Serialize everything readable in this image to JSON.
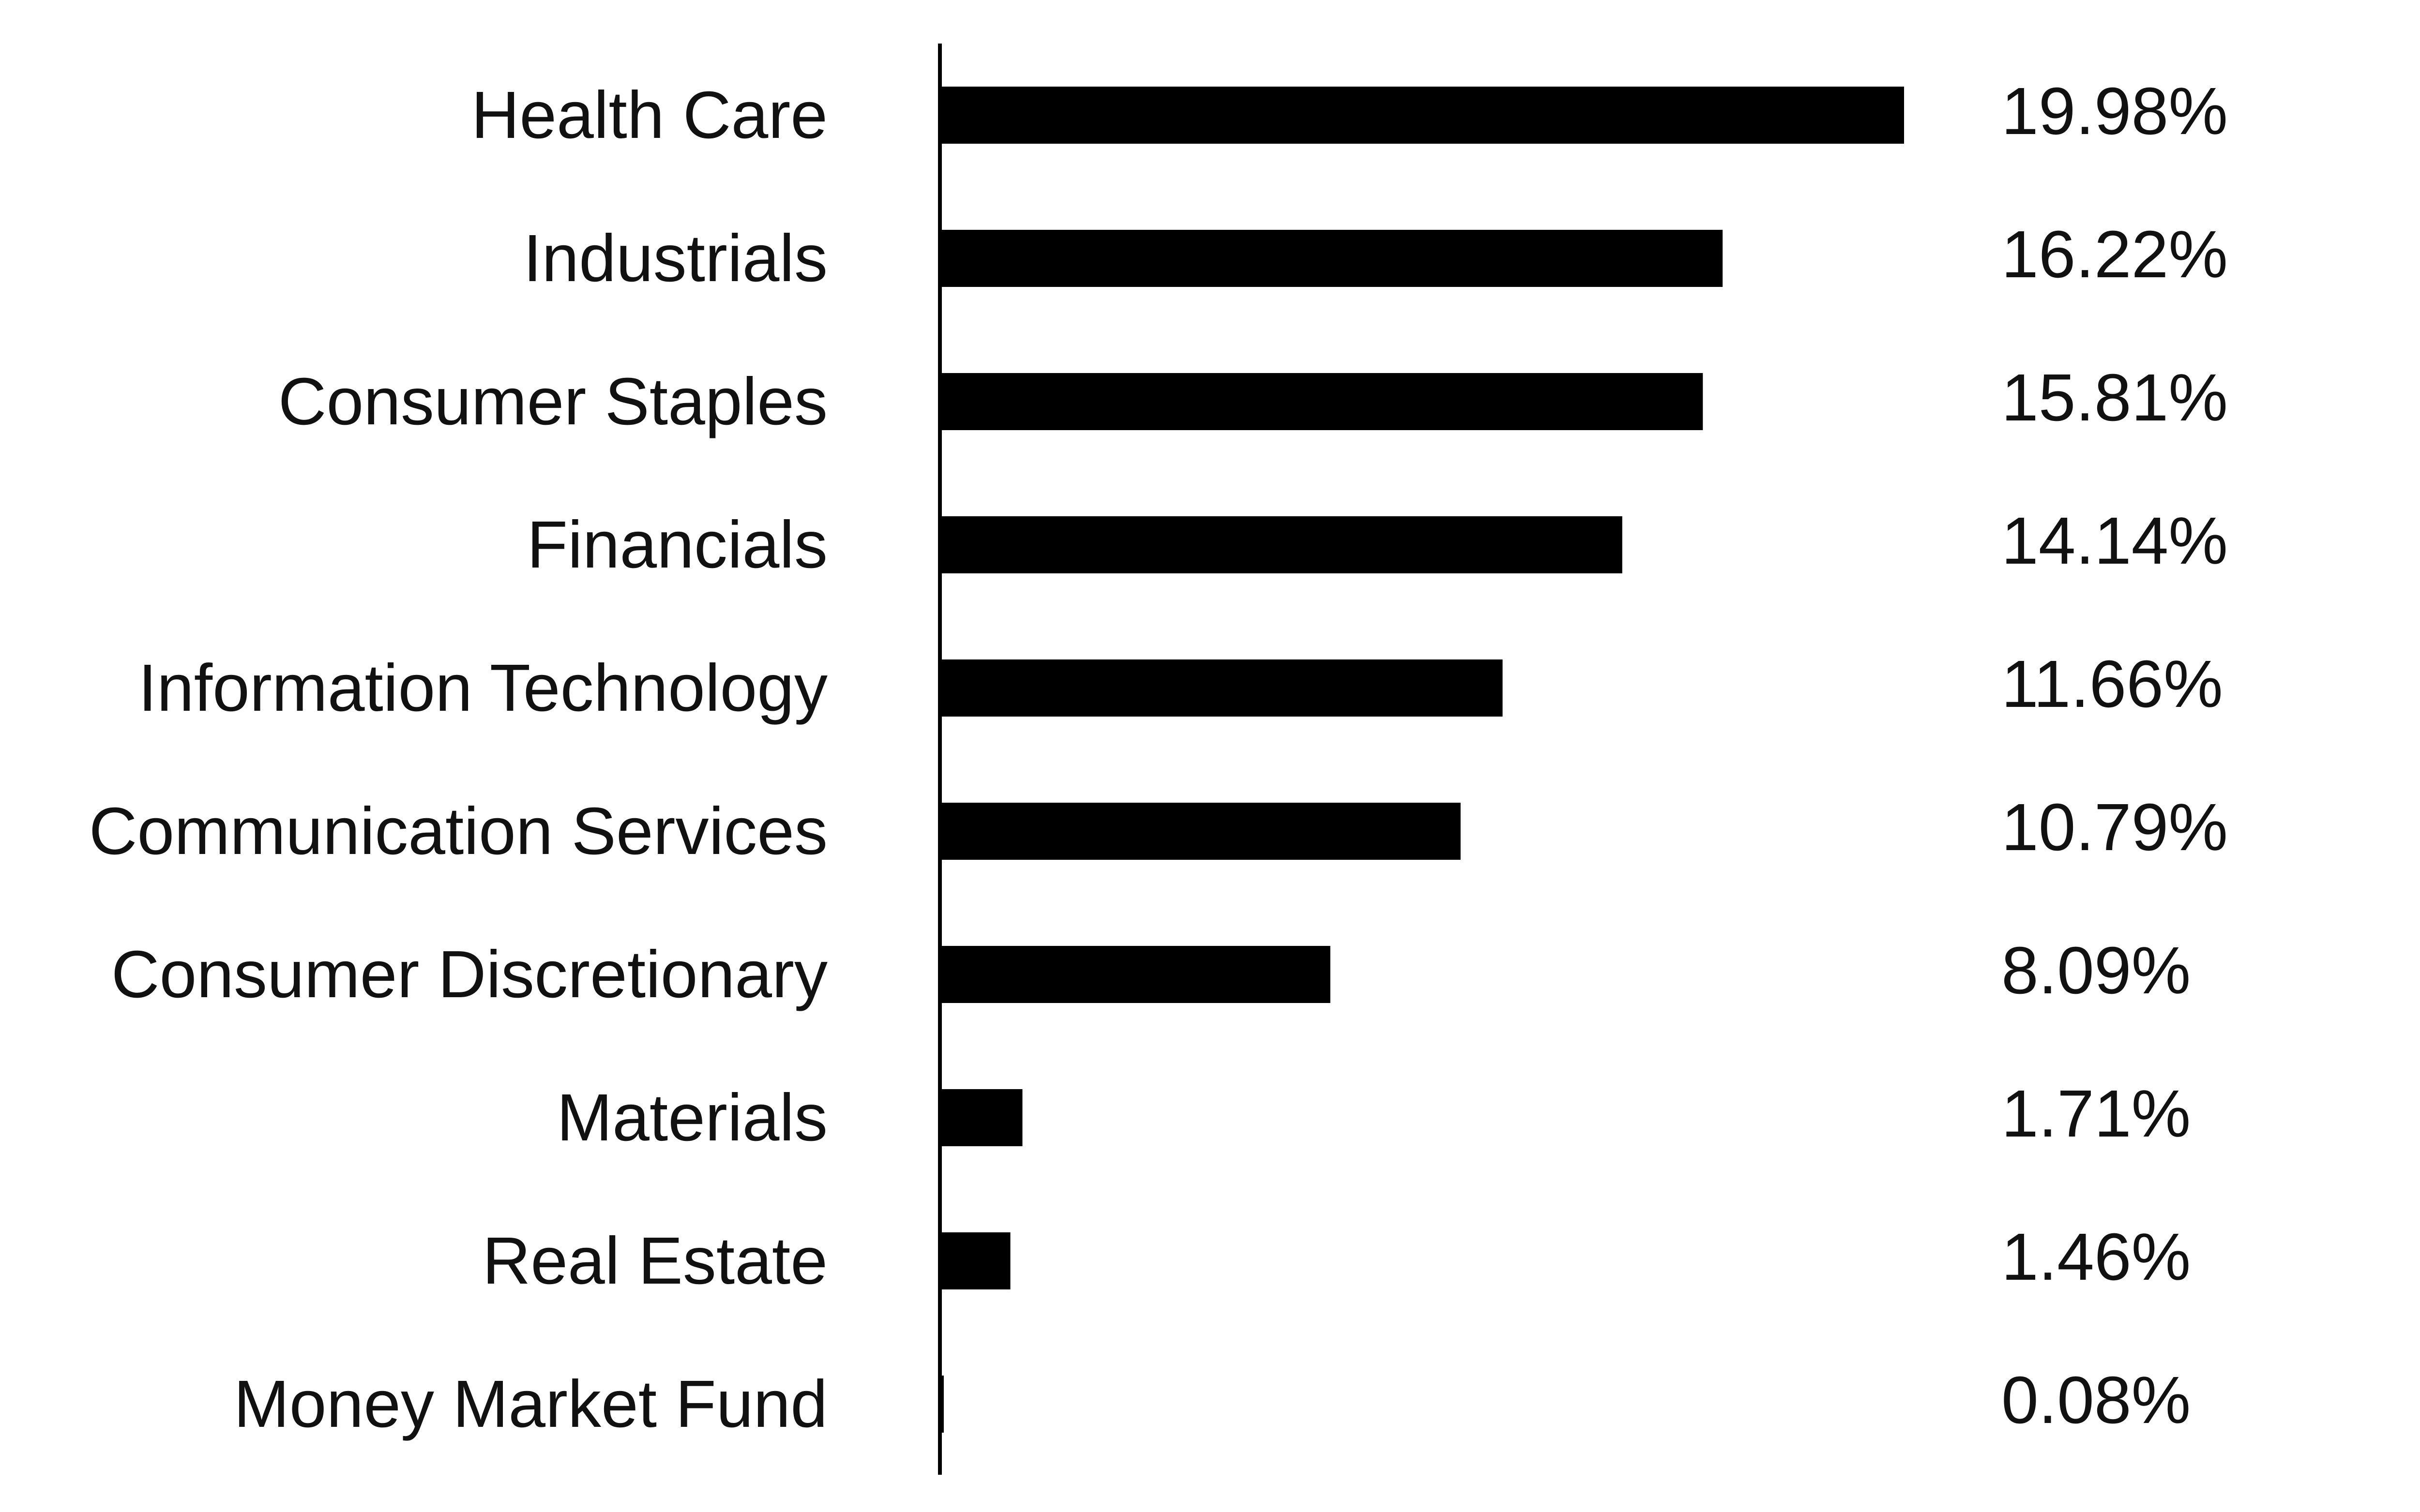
{
  "chart_data": {
    "type": "bar",
    "orientation": "horizontal",
    "categories": [
      "Health Care",
      "Industrials",
      "Consumer Staples",
      "Financials",
      "Information Technology",
      "Communication Services",
      "Consumer Discretionary",
      "Materials",
      "Real Estate",
      "Money Market Fund"
    ],
    "values": [
      19.98,
      16.22,
      15.81,
      14.14,
      11.66,
      10.79,
      8.09,
      1.71,
      1.46,
      0.08
    ],
    "value_labels": [
      "19.98%",
      "16.22%",
      "15.81%",
      "14.14%",
      "11.66%",
      "10.79%",
      "8.09%",
      "1.71%",
      "1.46%",
      "0.08%"
    ],
    "title": "",
    "xlabel": "",
    "ylabel": "",
    "xlim": [
      0,
      20
    ],
    "grid": false,
    "legend": "none",
    "bar_color": "#000000",
    "axis_color": "#000000",
    "text_color": "#111111"
  }
}
